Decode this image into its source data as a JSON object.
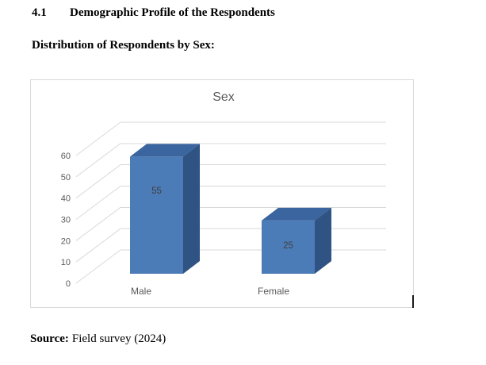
{
  "heading": {
    "number": "4.1",
    "title": "Demographic Profile of the Respondents"
  },
  "subheading": "Distribution of Respondents by Sex:",
  "source": {
    "label": "Source:",
    "text": "Field survey (2024)"
  },
  "caret": {
    "visible": true
  },
  "chart_data": {
    "type": "bar",
    "style": "3d-column",
    "title": "Sex",
    "categories": [
      "Male",
      "Female"
    ],
    "values": [
      55,
      25
    ],
    "data_labels": [
      "55",
      "25"
    ],
    "yticks": [
      0,
      10,
      20,
      30,
      40,
      50,
      60
    ],
    "ylim": [
      0,
      60
    ],
    "xlabel": "",
    "ylabel": "",
    "grid": true,
    "legend": "none",
    "colors": {
      "bar_front": "#4c7cb8",
      "bar_top": "#3a659e",
      "bar_side": "#2f5382",
      "gridline": "#d9d9d9",
      "axis_text": "#595959",
      "title_text": "#595959",
      "data_label_text": "#3f3f3f",
      "frame_border": "#d9d9d9"
    }
  }
}
